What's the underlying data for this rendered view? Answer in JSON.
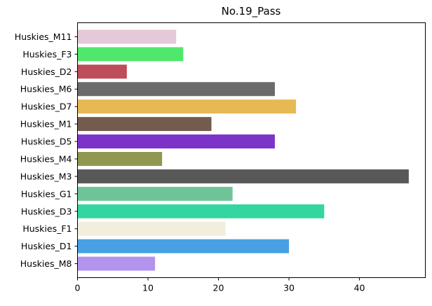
{
  "chart_data": {
    "type": "bar",
    "orientation": "horizontal",
    "title": "No.19_Pass",
    "xlabel": "",
    "ylabel": "",
    "xlim": [
      0,
      49.35
    ],
    "xticks": [
      0,
      10,
      20,
      30,
      40
    ],
    "grid": false,
    "legend": "none",
    "categories": [
      "Huskies_M11",
      "Huskies_F3",
      "Huskies_D2",
      "Huskies_M6",
      "Huskies_D7",
      "Huskies_M1",
      "Huskies_D5",
      "Huskies_M4",
      "Huskies_M3",
      "Huskies_G1",
      "Huskies_D3",
      "Huskies_F1",
      "Huskies_D1",
      "Huskies_M8"
    ],
    "values": [
      14,
      15,
      7,
      28,
      31,
      19,
      28,
      12,
      47,
      22,
      35,
      21,
      30,
      11
    ],
    "colors": [
      "#e4c9d8",
      "#4fe86c",
      "#bd4d58",
      "#6b6b6c",
      "#e6b954",
      "#735c4d",
      "#7b33c8",
      "#919651",
      "#585858",
      "#6dc497",
      "#33d6a0",
      "#f3eedc",
      "#46a0e3",
      "#b294ef"
    ]
  }
}
